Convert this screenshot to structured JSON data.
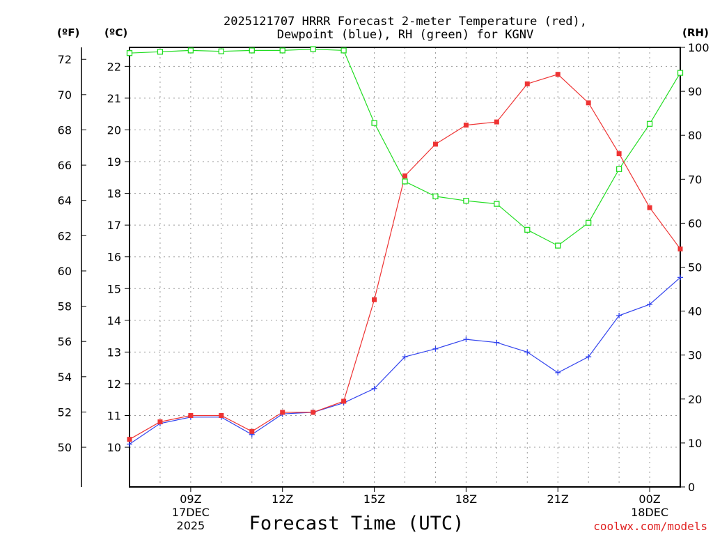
{
  "chart_data": {
    "type": "line",
    "title_line1": "2025121707 HRRR Forecast 2-meter Temperature (red),",
    "title_line2": "Dewpoint (blue), RH (green) for KGNV",
    "xlabel": "Forecast Time (UTC)",
    "left_outer_unit": "(ºF)",
    "left_inner_unit": "(ºC)",
    "right_unit": "(RH)",
    "credit": "coolwx.com/models",
    "colors": {
      "temperature": "#ee3333",
      "dewpoint": "#3344ee",
      "rh": "#22dd22",
      "grid": "#999999"
    },
    "x_hours": [
      7,
      8,
      9,
      10,
      11,
      12,
      13,
      14,
      15,
      16,
      17,
      18,
      19,
      20,
      21,
      22,
      23,
      24,
      25
    ],
    "x_tick_hours": [
      9,
      12,
      15,
      18,
      21,
      24
    ],
    "x_tick_labels": [
      "09Z",
      "12Z",
      "15Z",
      "18Z",
      "21Z",
      "00Z"
    ],
    "x_date_labels": [
      {
        "hour": 9,
        "lines": [
          "17DEC",
          "2025"
        ]
      },
      {
        "hour": 24,
        "lines": [
          "18DEC"
        ]
      }
    ],
    "celsius_ticks": [
      10,
      11,
      12,
      13,
      14,
      15,
      16,
      17,
      18,
      19,
      20,
      21,
      22
    ],
    "fahrenheit_ticks": [
      50,
      52,
      54,
      56,
      58,
      60,
      62,
      64,
      66,
      68,
      70,
      72
    ],
    "rh_ticks": [
      0,
      10,
      20,
      30,
      40,
      50,
      60,
      70,
      80,
      90,
      100
    ],
    "series": [
      {
        "name": "Temperature",
        "unit": "C",
        "values": [
          10.25,
          10.8,
          11.0,
          11.0,
          10.5,
          11.1,
          11.1,
          11.45,
          14.65,
          18.55,
          19.55,
          20.15,
          20.25,
          21.45,
          21.75,
          20.85,
          19.25,
          17.55,
          16.25
        ]
      },
      {
        "name": "Dewpoint",
        "unit": "C",
        "values": [
          10.1,
          10.75,
          10.95,
          10.95,
          10.4,
          11.05,
          11.1,
          11.4,
          11.85,
          12.85,
          13.1,
          13.4,
          13.3,
          13.0,
          12.35,
          12.85,
          14.15,
          14.5,
          15.35
        ]
      },
      {
        "name": "RH",
        "unit": "%",
        "values": [
          98.7,
          99.0,
          99.3,
          99.1,
          99.3,
          99.3,
          99.6,
          99.3,
          82.8,
          69.5,
          66.1,
          65.1,
          64.4,
          58.5,
          54.9,
          60.1,
          72.3,
          82.6,
          94.2
        ]
      }
    ]
  }
}
